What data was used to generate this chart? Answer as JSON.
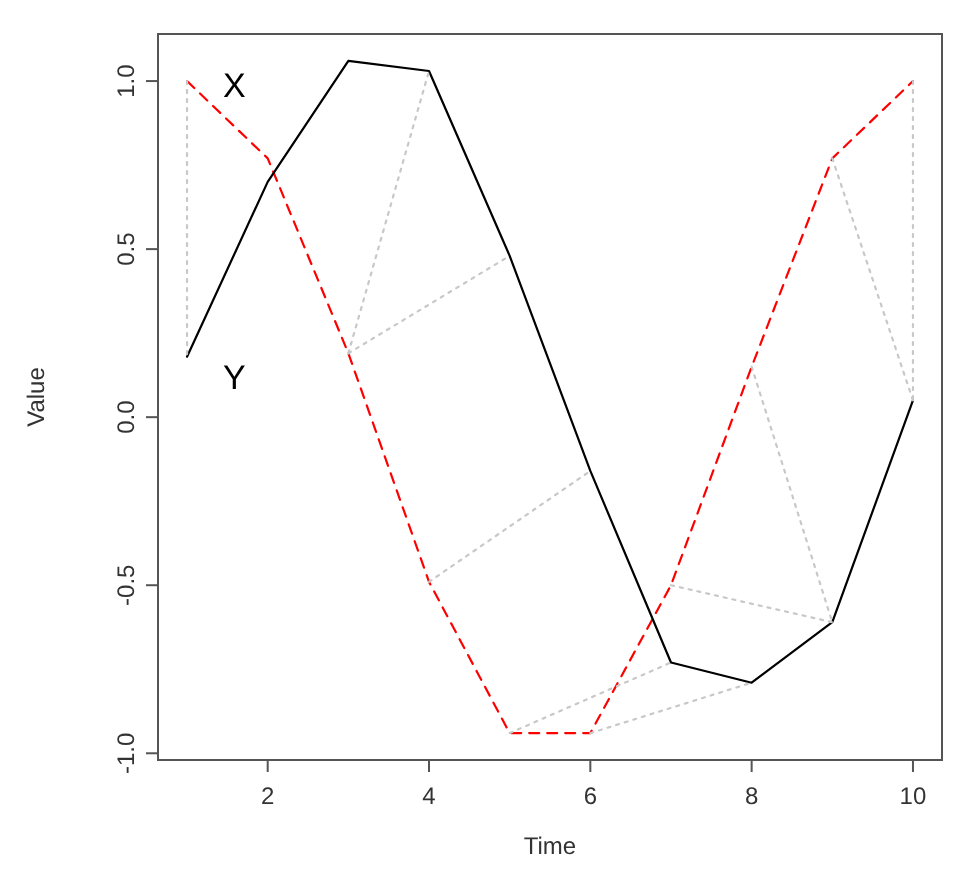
{
  "chart_data": {
    "type": "line",
    "xlabel": "Time",
    "ylabel": "Value",
    "x": [
      1,
      2,
      3,
      4,
      5,
      6,
      7,
      8,
      9,
      10
    ],
    "series": [
      {
        "name": "X",
        "color": "#ff0000",
        "line_style": "dashed",
        "values": [
          1.0,
          0.77,
          0.19,
          -0.49,
          -0.94,
          -0.94,
          -0.5,
          0.15,
          0.77,
          1.0
        ]
      },
      {
        "name": "Y",
        "color": "#000000",
        "line_style": "solid",
        "values": [
          0.18,
          0.7,
          1.06,
          1.03,
          0.48,
          -0.16,
          -0.73,
          -0.79,
          -0.61,
          0.05
        ]
      },
      {
        "color": "#c8c8c8",
        "line_style": "dotted",
        "x": [
          1,
          1
        ],
        "values": [
          1.0,
          0.18
        ]
      },
      {
        "color": "#c8c8c8",
        "line_style": "dotted",
        "x": [
          3,
          4
        ],
        "values": [
          0.19,
          1.03
        ]
      },
      {
        "color": "#c8c8c8",
        "line_style": "dotted",
        "x": [
          3,
          5
        ],
        "values": [
          0.19,
          0.48
        ]
      },
      {
        "color": "#c8c8c8",
        "line_style": "dotted",
        "x": [
          4,
          6
        ],
        "values": [
          -0.49,
          -0.16
        ]
      },
      {
        "color": "#c8c8c8",
        "line_style": "dotted",
        "x": [
          5,
          7
        ],
        "values": [
          -0.94,
          -0.73
        ]
      },
      {
        "color": "#c8c8c8",
        "line_style": "dotted",
        "x": [
          6,
          8
        ],
        "values": [
          -0.94,
          -0.79
        ]
      },
      {
        "color": "#c8c8c8",
        "line_style": "dotted",
        "x": [
          7,
          9
        ],
        "values": [
          -0.5,
          -0.61
        ]
      },
      {
        "color": "#c8c8c8",
        "line_style": "dotted",
        "x": [
          8,
          9
        ],
        "values": [
          0.15,
          -0.61
        ]
      },
      {
        "color": "#c8c8c8",
        "line_style": "dotted",
        "x": [
          9,
          10
        ],
        "values": [
          0.77,
          0.05
        ]
      },
      {
        "color": "#c8c8c8",
        "line_style": "dotted",
        "x": [
          10,
          10
        ],
        "values": [
          1.0,
          0.05
        ]
      }
    ],
    "xlim": [
      0.64,
      10.36
    ],
    "xticks": [
      2,
      4,
      6,
      8,
      10
    ],
    "ylim": [
      -1.02,
      1.14
    ],
    "yticks": [
      {
        "value": -1,
        "label": "-1.0"
      },
      {
        "value": -0.5,
        "label": "-0.5"
      },
      {
        "value": 0,
        "label": "0.0"
      },
      {
        "value": 0.5,
        "label": "0.5"
      },
      {
        "value": 1,
        "label": "1.0"
      }
    ],
    "grid": false,
    "legend": false,
    "marker": "none"
  }
}
